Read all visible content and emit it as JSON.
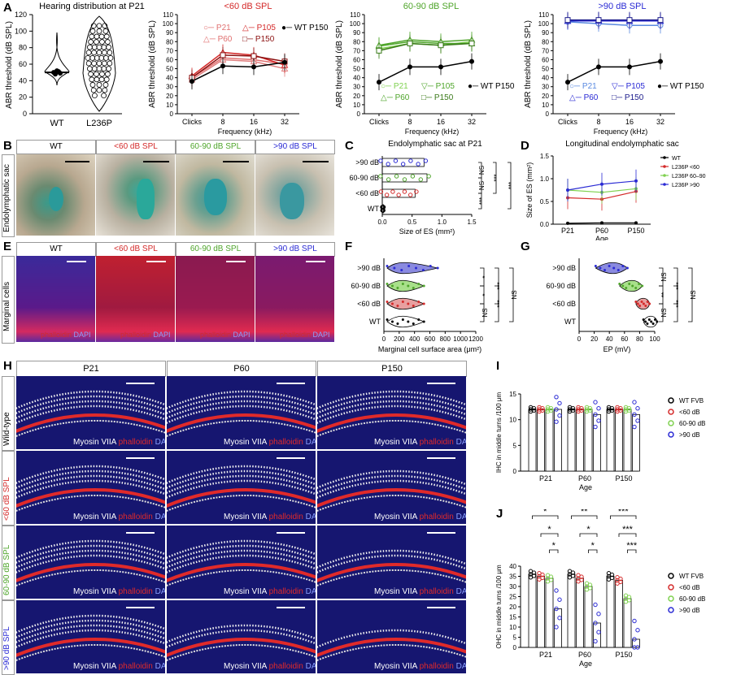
{
  "colors": {
    "red": "#d42a2a",
    "green": "#4fa52b",
    "blue": "#2a2ad4",
    "pink": "#e07070",
    "darkred": "#8b1010",
    "lightgreen": "#7fd14f",
    "black": "#000000"
  },
  "panels": {
    "A": "A",
    "B": "B",
    "C": "C",
    "D": "D",
    "E": "E",
    "F": "F",
    "G": "G",
    "H": "H",
    "I": "I",
    "J": "J"
  },
  "panelA": {
    "violin": {
      "title": "Hearing distribution at P21",
      "ylabel": "ABR threshold (dB SPL)",
      "categories": [
        "WT",
        "L236P"
      ],
      "yticks": [
        "0",
        "20",
        "40",
        "60",
        "80",
        "100",
        "120"
      ]
    },
    "abr_titles": [
      "<60 dB SPL",
      "60-90 dB SPL",
      ">90 dB SPL"
    ],
    "ylabel": "ABR threshold (dB SPL)",
    "xlabel": "Frequency (kHz)",
    "xticks": [
      "Clicks",
      "8",
      "16",
      "32"
    ],
    "yticks": [
      "0",
      "10",
      "20",
      "30",
      "40",
      "50",
      "60",
      "70",
      "80",
      "90",
      "100",
      "110"
    ],
    "legend": [
      "P21",
      "P60",
      "P105",
      "P150",
      "WT P150"
    ]
  },
  "chart_data": [
    {
      "type": "scatter",
      "panel": "A-violin",
      "categories": [
        "WT",
        "L236P"
      ],
      "values": [
        [
          50,
          48,
          52,
          51,
          49
        ],
        [
          25,
          35,
          45,
          55,
          65,
          75,
          85,
          95,
          105,
          110
        ]
      ],
      "title": "Hearing distribution at P21",
      "ylabel": "ABR threshold (dB SPL)",
      "ylim": [
        0,
        120
      ]
    },
    {
      "type": "line",
      "panel": "A-lt60",
      "title": "<60 dB SPL",
      "categories": [
        "Clicks",
        "8",
        "16",
        "32"
      ],
      "ylim": [
        0,
        110
      ],
      "series": [
        {
          "name": "P21",
          "values": [
            40,
            62,
            60,
            55
          ]
        },
        {
          "name": "P60",
          "values": [
            38,
            60,
            58,
            50
          ]
        },
        {
          "name": "P105",
          "values": [
            42,
            68,
            65,
            54
          ]
        },
        {
          "name": "P150",
          "values": [
            40,
            65,
            64,
            58
          ]
        },
        {
          "name": "WT P150",
          "values": [
            36,
            53,
            52,
            57
          ]
        }
      ]
    },
    {
      "type": "line",
      "panel": "A-60-90",
      "title": "60-90 dB SPL",
      "categories": [
        "Clicks",
        "8",
        "16",
        "32"
      ],
      "ylim": [
        0,
        110
      ],
      "series": [
        {
          "name": "P21",
          "values": [
            72,
            78,
            76,
            80
          ]
        },
        {
          "name": "P60",
          "values": [
            75,
            80,
            78,
            78
          ]
        },
        {
          "name": "P105",
          "values": [
            76,
            82,
            80,
            82
          ]
        },
        {
          "name": "P150",
          "values": [
            70,
            78,
            76,
            78
          ]
        },
        {
          "name": "WT P150",
          "values": [
            35,
            52,
            52,
            58
          ]
        }
      ]
    },
    {
      "type": "line",
      "panel": "A-gt90",
      "title": ">90 dB SPL",
      "categories": [
        "Clicks",
        "8",
        "16",
        "32"
      ],
      "ylim": [
        0,
        110
      ],
      "series": [
        {
          "name": "P21",
          "values": [
            102,
            100,
            98,
            98
          ]
        },
        {
          "name": "P60",
          "values": [
            103,
            104,
            103,
            103
          ]
        },
        {
          "name": "P105",
          "values": [
            103,
            103,
            103,
            103
          ]
        },
        {
          "name": "P150",
          "values": [
            104,
            104,
            104,
            104
          ]
        },
        {
          "name": "WT P150",
          "values": [
            35,
            52,
            52,
            58
          ]
        }
      ]
    },
    {
      "type": "bar",
      "panel": "C",
      "title": "Endolymphatic sac at P21",
      "categories": [
        ">90 dB",
        "60-90 dB",
        "<60 dB",
        "WT"
      ],
      "values": [
        0.7,
        0.75,
        0.55,
        0.02
      ],
      "xlabel": "Size of ES (mm²)",
      "xlim": [
        0,
        1.5
      ]
    },
    {
      "type": "line",
      "panel": "D",
      "title": "Longitudinal endolymphatic sac",
      "categories": [
        "P21",
        "P60",
        "P150"
      ],
      "ylim": [
        0,
        1.5
      ],
      "xlabel": "Age",
      "ylabel": "Size of ES (mm²)",
      "series": [
        {
          "name": "WT",
          "values": [
            0.02,
            0.03,
            0.03
          ]
        },
        {
          "name": "L236P <60",
          "values": [
            0.58,
            0.55,
            0.72
          ]
        },
        {
          "name": "L236P 60–90",
          "values": [
            0.75,
            0.7,
            0.78
          ]
        },
        {
          "name": "L236P >90",
          "values": [
            0.75,
            0.88,
            0.95
          ]
        }
      ]
    },
    {
      "type": "scatter",
      "panel": "F",
      "categories": [
        ">90 dB",
        "60-90 dB",
        "<60 dB",
        "WT"
      ],
      "xlabel": "Marginal cell surface area (μm²)",
      "xlim": [
        0,
        1200
      ],
      "values": [
        450,
        380,
        300,
        250
      ]
    },
    {
      "type": "scatter",
      "panel": "G",
      "categories": [
        ">90 dB",
        "60-90 dB",
        "<60 dB",
        "WT"
      ],
      "xlabel": "EP (mV)",
      "xlim": [
        0,
        100
      ],
      "values": [
        45,
        70,
        85,
        95
      ]
    },
    {
      "type": "bar",
      "panel": "I",
      "categories": [
        "P21",
        "P60",
        "P150"
      ],
      "ylabel": "IHC in middle turns /100 μm",
      "xlabel": "Age",
      "ylim": [
        0,
        40
      ],
      "series": [
        {
          "name": "WT FVB",
          "values": [
            12,
            12,
            12
          ]
        },
        {
          "name": "<60 dB",
          "values": [
            12,
            12,
            12
          ]
        },
        {
          "name": "60-90 dB",
          "values": [
            12,
            12,
            12
          ]
        },
        {
          "name": ">90 dB",
          "values": [
            12,
            11,
            11
          ]
        }
      ]
    },
    {
      "type": "bar",
      "panel": "J",
      "categories": [
        "P21",
        "P60",
        "P150"
      ],
      "ylabel": "OHC in middle turns /100 μm",
      "xlabel": "Age",
      "ylim": [
        0,
        40
      ],
      "series": [
        {
          "name": "WT FVB",
          "values": [
            36,
            36,
            35
          ]
        },
        {
          "name": "<60 dB",
          "values": [
            35,
            34,
            33
          ]
        },
        {
          "name": "60-90 dB",
          "values": [
            34,
            30,
            24
          ]
        },
        {
          "name": ">90 dB",
          "values": [
            19,
            12,
            4
          ]
        }
      ]
    }
  ],
  "panelB": {
    "row_label": "Endolymphatic sac",
    "headers": [
      "WT",
      "<60 dB SPL",
      "60-90 dB SPL",
      ">90 dB SPL"
    ]
  },
  "panelC": {
    "title": "Endolymphatic sac at P21",
    "categories": [
      ">90 dB",
      "60-90 dB",
      "<60 dB",
      "WT"
    ],
    "xlabel": "Size of ES (mm²)",
    "xticks": [
      "0.0",
      "0.5",
      "1.0",
      "1.5"
    ],
    "sig": [
      "NS",
      "NS",
      "***",
      "***",
      "***"
    ]
  },
  "panelD": {
    "title": "Longitudinal endolymphatic sac",
    "ylabel": "Size of ES (mm²)",
    "xlabel": "Age",
    "xticks": [
      "P21",
      "P60",
      "P150"
    ],
    "yticks": [
      "0.0",
      "0.5",
      "1.0",
      "1.5"
    ],
    "legend": [
      "WT",
      "L236P <60",
      "L236P 60–90",
      "L236P >90"
    ]
  },
  "panelE": {
    "row_label": "Marginal cells",
    "headers": [
      "WT",
      "<60 dB SPL",
      "60-90 dB SPL",
      ">90 dB SPL"
    ],
    "stain_a": "phalloidin",
    "stain_b": "DAPI"
  },
  "panelF": {
    "categories": [
      ">90 dB",
      "60-90 dB",
      "<60 dB",
      "WT"
    ],
    "xlabel": "Marginal cell surface area (μm²)",
    "xticks": [
      "0",
      "200",
      "400",
      "600",
      "800",
      "1000",
      "1200"
    ],
    "sig": [
      "*",
      "***",
      "NS",
      "*",
      "***",
      "NS"
    ]
  },
  "panelG": {
    "categories": [
      ">90 dB",
      "60-90 dB",
      "<60 dB",
      "WT"
    ],
    "xlabel": "EP (mV)",
    "xticks": [
      "0",
      "20",
      "40",
      "60",
      "80",
      "100"
    ],
    "sig": [
      "NS",
      "***",
      "NS",
      "**",
      "***",
      "NS"
    ]
  },
  "panelH": {
    "cols": [
      "P21",
      "P60",
      "P150"
    ],
    "rows": [
      "Wild-type",
      "<60 dB SPL",
      "60-90 dB SPL",
      ">90 dB SPL"
    ],
    "stain_a": "Myosin VIIA",
    "stain_b": "phalloidin",
    "stain_c": "DAPI"
  },
  "panelI": {
    "ylabel": "IHC in middle turns /100 μm",
    "xlabel": "Age",
    "xticks": [
      "P21",
      "P60",
      "P150"
    ],
    "yticks": [
      "0",
      "5",
      "10",
      "15"
    ],
    "legend": [
      "WT FVB",
      "<60 dB",
      "60-90 dB",
      ">90 dB"
    ]
  },
  "panelJ": {
    "ylabel": "OHC in middle turns /100 μm",
    "xlabel": "Age",
    "xticks": [
      "P21",
      "P60",
      "P150"
    ],
    "yticks": [
      "0",
      "5",
      "10",
      "15",
      "20",
      "25",
      "30",
      "35",
      "40"
    ],
    "legend": [
      "WT FVB",
      "<60 dB",
      "60-90 dB",
      ">90 dB"
    ],
    "sig": [
      "*",
      "*",
      "*",
      "**",
      "*",
      "*",
      "***",
      "***",
      "***"
    ]
  }
}
